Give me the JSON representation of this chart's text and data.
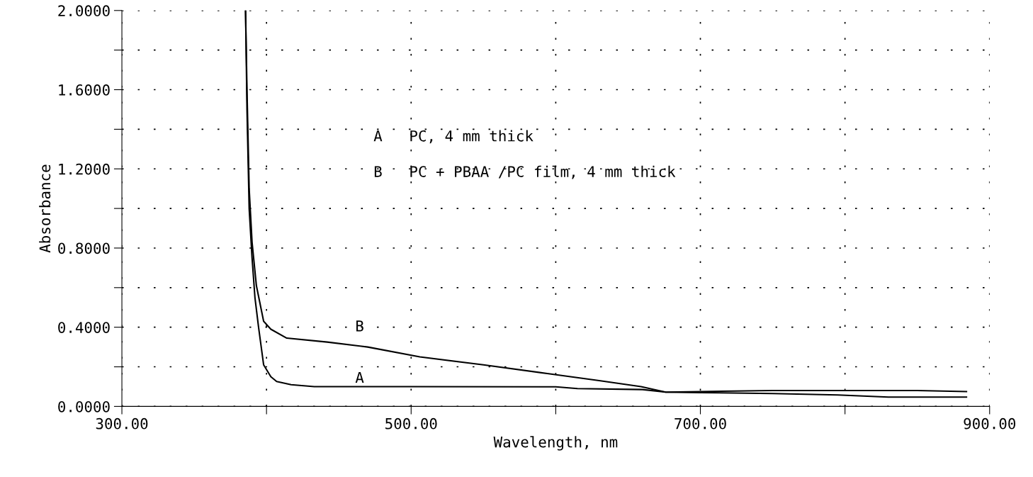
{
  "chart_data": {
    "type": "line",
    "xlabel": "Wavelength, nm",
    "ylabel": "Absorbance",
    "xlim": [
      300,
      900
    ],
    "ylim": [
      0,
      2.0
    ],
    "xticks": [
      {
        "value": 300,
        "label": "300.00"
      },
      {
        "value": 400,
        "label": null
      },
      {
        "value": 500,
        "label": "500.00"
      },
      {
        "value": 600,
        "label": null
      },
      {
        "value": 700,
        "label": "700.00"
      },
      {
        "value": 800,
        "label": null
      },
      {
        "value": 900,
        "label": "900.00"
      }
    ],
    "yticks": [
      {
        "value": 0,
        "label": "0.0000"
      },
      {
        "value": 0.2,
        "label": null
      },
      {
        "value": 0.4,
        "label": "0.4000"
      },
      {
        "value": 0.6,
        "label": null
      },
      {
        "value": 0.8,
        "label": "0.8000"
      },
      {
        "value": 1.0,
        "label": null
      },
      {
        "value": 1.2,
        "label": "1.2000"
      },
      {
        "value": 1.4,
        "label": null
      },
      {
        "value": 1.6,
        "label": "1.6000"
      },
      {
        "value": 1.8,
        "label": null
      },
      {
        "value": 2.0,
        "label": "2.0000"
      }
    ],
    "grid": true,
    "marker": "none",
    "line_style": "solid",
    "series": [
      {
        "color": "#000000",
        "x": [
          385.5,
          386.5,
          388,
          390,
          392,
          394.5,
          398,
          403,
          407,
          417,
          433,
          500,
          600,
          615,
          660,
          676,
          700,
          750,
          800,
          850,
          884
        ],
        "values": [
          2.0,
          1.5,
          1.0,
          0.75,
          0.55,
          0.4,
          0.21,
          0.15,
          0.126,
          0.11,
          0.1,
          0.1,
          0.099,
          0.09,
          0.085,
          0.072,
          0.075,
          0.08,
          0.08,
          0.08,
          0.075
        ]
      },
      {
        "color": "#000000",
        "x": [
          385.5,
          386.5,
          388,
          390,
          393,
          398,
          403,
          414,
          442,
          470,
          506,
          550,
          595,
          630,
          659,
          676,
          700,
          750,
          795,
          830,
          884
        ],
        "values": [
          2.0,
          1.6,
          1.1,
          0.83,
          0.61,
          0.43,
          0.39,
          0.345,
          0.325,
          0.3,
          0.25,
          0.21,
          0.165,
          0.13,
          0.1,
          0.072,
          0.07,
          0.065,
          0.058,
          0.047,
          0.047
        ]
      }
    ],
    "annotations": [
      "A",
      "B",
      "A   PC, 4 mm thick",
      "B   PC + PBAA /PC film, 4 mm thick"
    ]
  }
}
